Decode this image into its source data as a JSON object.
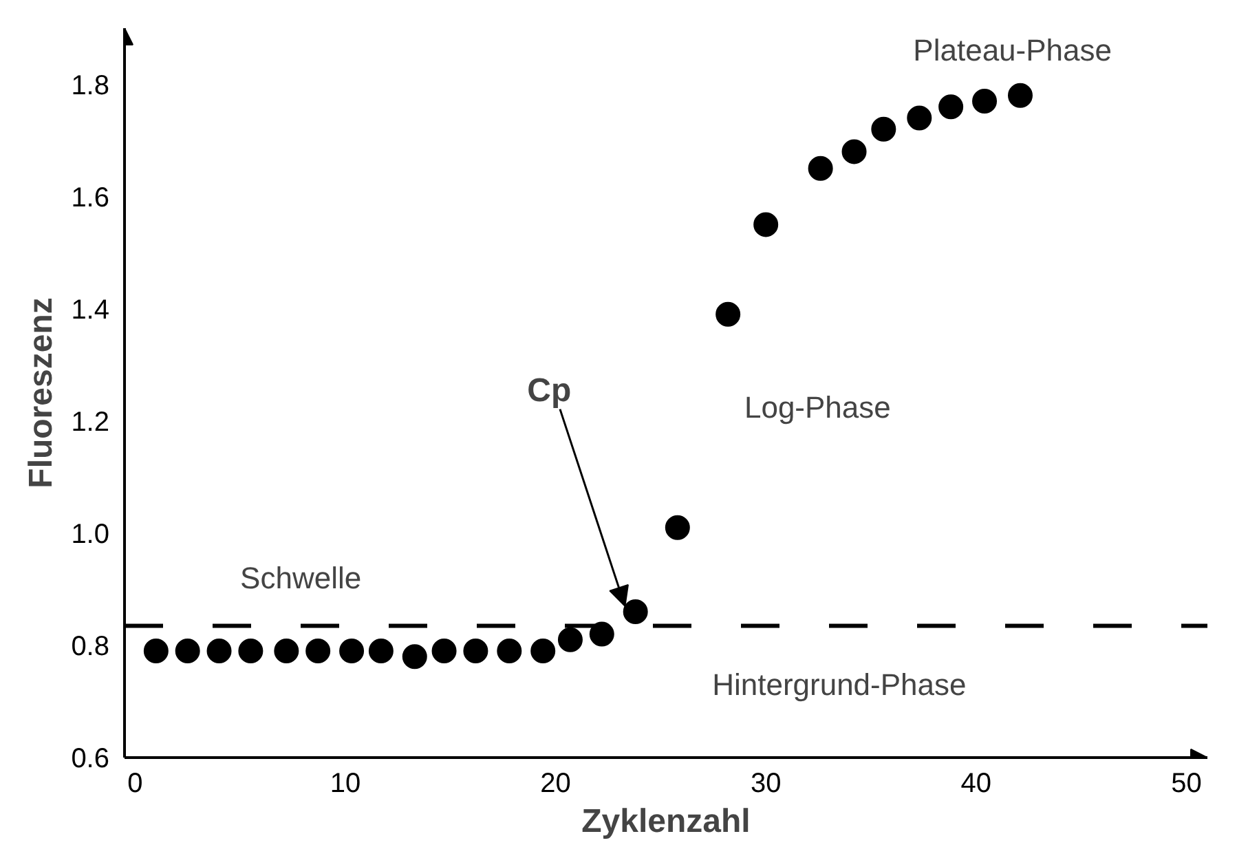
{
  "chart_data": {
    "type": "scatter",
    "xlabel": "Zyklenzahl",
    "ylabel": "Fluoreszenz",
    "xlim": [
      -0.5,
      51
    ],
    "ylim": [
      0.6,
      1.9
    ],
    "xticks": [
      0,
      10,
      20,
      30,
      40,
      50
    ],
    "yticks": [
      0.6,
      0.8,
      {
        "value": 1,
        "label": "1.0"
      },
      1.2,
      1.4,
      1.6,
      1.8
    ],
    "grid": false,
    "marker": "circle",
    "series": [
      {
        "color": "#000000",
        "x": [
          1.0,
          2.5,
          4.0,
          5.5,
          7.2,
          8.7,
          10.3,
          11.7,
          13.3,
          14.7,
          16.2,
          17.8,
          19.4,
          20.7,
          22.2,
          23.8,
          25.8,
          28.2,
          30.0,
          32.6,
          34.2,
          35.6,
          37.3,
          38.8,
          40.4,
          42.1
        ],
        "values": [
          0.79,
          0.79,
          0.79,
          0.79,
          0.79,
          0.79,
          0.79,
          0.79,
          0.78,
          0.79,
          0.79,
          0.79,
          0.79,
          0.81,
          0.82,
          0.86,
          1.01,
          1.39,
          1.55,
          1.65,
          1.68,
          1.72,
          1.74,
          1.76,
          1.77,
          1.78
        ]
      }
    ],
    "ref_lines": [
      {
        "axis": "y",
        "value": 0.835,
        "label": "Schwelle",
        "color": "#000000",
        "line_style": "dashed"
      }
    ],
    "annotations": [
      {
        "text": "Cp",
        "x": 23.3,
        "y": 0.87
      },
      "Log-Phase",
      "Plateau-Phase",
      "Hintergrund-Phase"
    ]
  }
}
